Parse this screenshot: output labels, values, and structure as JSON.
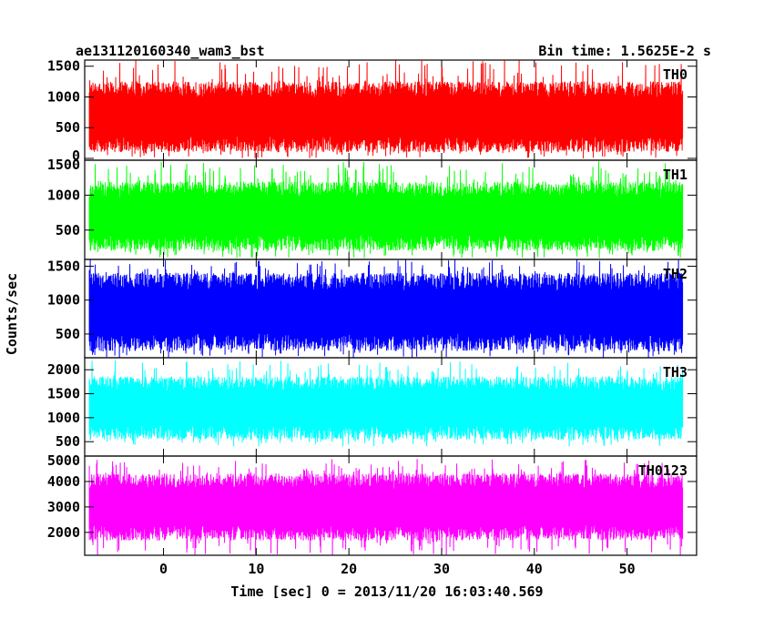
{
  "chart_data": {
    "type": "line",
    "title": "ae131120160340_wam3_bst",
    "bin_time_label": "Bin time: 1.5625E-2 s",
    "xlabel": "Time [sec] 0 = 2013/11/20 16:03:40.569",
    "ylabel": "Counts/sec",
    "xlim": [
      -8.5,
      57.5
    ],
    "x_ticks": [
      0,
      10,
      20,
      30,
      40,
      50
    ],
    "data_x_range": [
      -8.0,
      56.0
    ],
    "panels": [
      {
        "name": "TH0",
        "color": "#ff0000",
        "ylim": [
          -30,
          1600
        ],
        "y_ticks": [
          500,
          1000,
          1500
        ],
        "y_tick_labels": [
          "0",
          "500",
          "1000",
          "1500"
        ],
        "y_tick_values": [
          0,
          500,
          1000,
          1500
        ],
        "typical_low": 150,
        "typical_high": 1200,
        "min": 0,
        "max": 1600
      },
      {
        "name": "TH1",
        "color": "#00ff00",
        "ylim": [
          80,
          1500
        ],
        "y_tick_labels": [
          "1500",
          "1000",
          "500"
        ],
        "y_tick_values": [
          1500,
          1000,
          500
        ],
        "typical_low": 250,
        "typical_high": 1150,
        "min": 100,
        "max": 1500
      },
      {
        "name": "TH2",
        "color": "#0000ff",
        "ylim": [
          150,
          1600
        ],
        "y_tick_labels": [
          "1500",
          "1000",
          "500"
        ],
        "y_tick_values": [
          1500,
          1000,
          500
        ],
        "typical_low": 300,
        "typical_high": 1350,
        "min": 150,
        "max": 1600
      },
      {
        "name": "TH3",
        "color": "#00ffff",
        "ylim": [
          200,
          2250
        ],
        "y_tick_labels": [
          "2000",
          "1500",
          "1000",
          "500"
        ],
        "y_tick_values": [
          2000,
          1500,
          1000,
          500
        ],
        "typical_low": 600,
        "typical_high": 1800,
        "min": 400,
        "max": 2200
      },
      {
        "name": "TH0123",
        "color": "#ff00ff",
        "ylim": [
          1100,
          5000
        ],
        "y_tick_labels": [
          "5000",
          "4000",
          "3000",
          "2000"
        ],
        "y_tick_values": [
          5000,
          4000,
          3000,
          2000
        ],
        "typical_low": 1800,
        "typical_high": 4200,
        "min": 1100,
        "max": 4900
      }
    ]
  }
}
